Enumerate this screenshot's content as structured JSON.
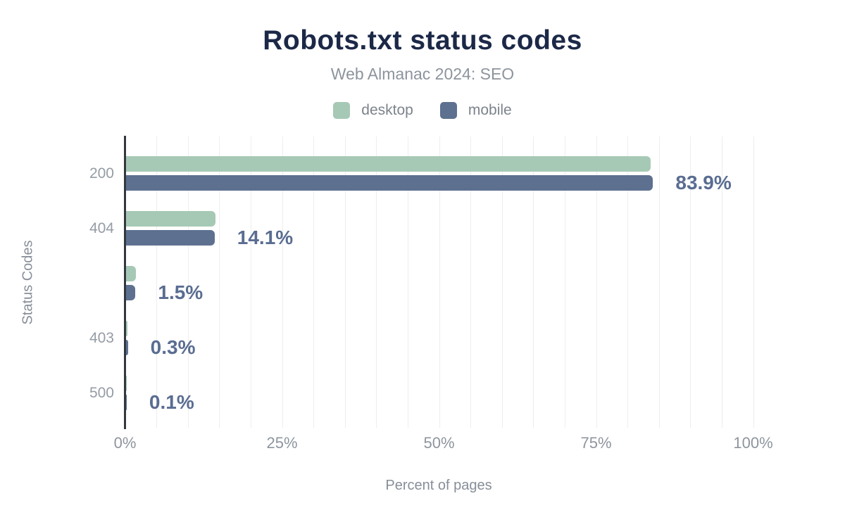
{
  "header": {
    "title": "Robots.txt status codes",
    "subtitle": "Web Almanac 2024: SEO"
  },
  "legend": [
    {
      "label": "desktop",
      "color": "#a6c9b6"
    },
    {
      "label": "mobile",
      "color": "#5d7090"
    }
  ],
  "chart_data": {
    "type": "bar",
    "orientation": "horizontal",
    "title": "Robots.txt status codes",
    "subtitle": "Web Almanac 2024: SEO",
    "categories": [
      "200",
      "404",
      "",
      "403",
      "500"
    ],
    "series": [
      {
        "name": "desktop",
        "color": "#a6c9b6",
        "values": [
          83.5,
          14.2,
          1.6,
          0.2,
          0.1
        ]
      },
      {
        "name": "mobile",
        "color": "#5d7090",
        "values": [
          83.9,
          14.1,
          1.5,
          0.3,
          0.1
        ]
      }
    ],
    "value_labels": [
      "83.9%",
      "14.1%",
      "1.5%",
      "0.3%",
      "0.1%"
    ],
    "xlabel": "Percent of pages",
    "ylabel": "Status Codes",
    "xlim": [
      0,
      100
    ],
    "x_ticks": [
      {
        "label": "0%",
        "value": 0
      },
      {
        "label": "25%",
        "value": 25
      },
      {
        "label": "50%",
        "value": 50
      },
      {
        "label": "75%",
        "value": 75
      },
      {
        "label": "100%",
        "value": 100
      }
    ],
    "grid": {
      "vertical_minor_step": 5,
      "color": "#eeeeee"
    },
    "legend_position": "top"
  },
  "colors": {
    "title": "#1c2847",
    "subtitle": "#8d949d",
    "axis_line": "#33383f",
    "tick_text": "#8e959e",
    "value_label": "#5a6d91",
    "background": "#ffffff"
  }
}
